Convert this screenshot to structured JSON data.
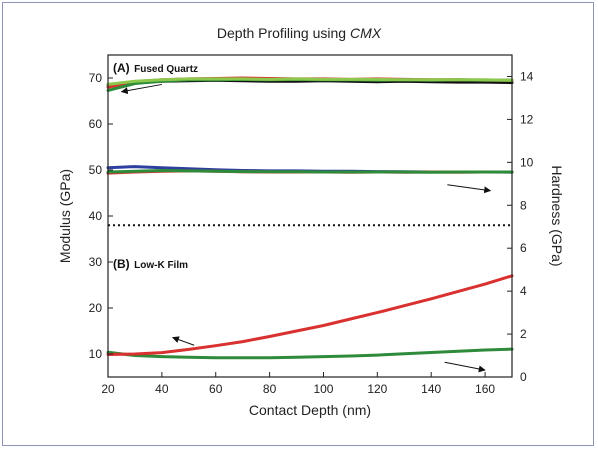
{
  "chart_data": {
    "type": "line",
    "title": "Depth Profiling using",
    "title_italic": "CMX",
    "xlabel": "Contact Depth (nm)",
    "ylabel_left": "Modulus (GPa)",
    "ylabel_right": "Hardness (GPa)",
    "xlim": [
      20,
      170
    ],
    "ylim_left": [
      5,
      75
    ],
    "ylim_right": [
      0,
      15
    ],
    "x_ticks": [
      20,
      40,
      60,
      80,
      100,
      120,
      140,
      160
    ],
    "y_left_ticks": [
      10,
      20,
      30,
      40,
      50,
      60,
      70
    ],
    "y_right_ticks": [
      0,
      2,
      4,
      6,
      8,
      10,
      12,
      14
    ],
    "divider_y_left": 38,
    "panels": [
      {
        "label_prefix": "(A)",
        "label_text": "Fused Quartz"
      },
      {
        "label_prefix": "(B)",
        "label_text": "Low-K Film"
      }
    ],
    "series": [
      {
        "group": "fused-quartz-modulus",
        "axis": "left",
        "color": "#111111",
        "x": [
          20,
          30,
          40,
          50,
          60,
          70,
          80,
          90,
          100,
          110,
          120,
          130,
          140,
          150,
          160,
          170
        ],
        "y": [
          68.5,
          69.0,
          69.3,
          69.4,
          69.5,
          69.4,
          69.3,
          69.3,
          69.4,
          69.3,
          69.2,
          69.3,
          69.2,
          69.1,
          69.1,
          69.0
        ]
      },
      {
        "group": "fused-quartz-modulus",
        "axis": "left",
        "color": "#d93030",
        "x": [
          20,
          30,
          40,
          50,
          60,
          70,
          80,
          90,
          100,
          110,
          120,
          130,
          140,
          150,
          160,
          170
        ],
        "y": [
          68.0,
          69.2,
          69.6,
          69.8,
          69.9,
          70.0,
          69.9,
          69.8,
          69.8,
          69.7,
          69.8,
          69.7,
          69.6,
          69.6,
          69.5,
          69.5
        ]
      },
      {
        "group": "fused-quartz-modulus",
        "axis": "left",
        "color": "#2e8b3a",
        "x": [
          20,
          30,
          40,
          50,
          60,
          70,
          80,
          90,
          100,
          110,
          120,
          130,
          140,
          150,
          160,
          170
        ],
        "y": [
          67.3,
          68.8,
          69.3,
          69.6,
          69.6,
          69.7,
          69.6,
          69.7,
          69.6,
          69.6,
          69.5,
          69.6,
          69.5,
          69.6,
          69.5,
          69.5
        ]
      },
      {
        "group": "fused-quartz-modulus",
        "axis": "left",
        "color": "#8cc84b",
        "x": [
          20,
          30,
          40,
          50,
          60,
          70,
          80,
          90,
          100,
          110,
          120,
          130,
          140,
          150,
          160,
          170
        ],
        "y": [
          68.6,
          69.3,
          69.6,
          69.8,
          69.8,
          69.8,
          69.7,
          69.8,
          69.7,
          69.7,
          69.7,
          69.6,
          69.6,
          69.6,
          69.6,
          69.5
        ]
      },
      {
        "group": "fused-quartz-hardness",
        "axis": "right",
        "color": "#2e3fa0",
        "x": [
          20,
          30,
          40,
          50,
          60,
          70,
          80,
          90,
          100,
          110,
          120,
          130,
          140,
          150,
          160,
          170
        ],
        "y": [
          9.75,
          9.8,
          9.75,
          9.7,
          9.65,
          9.62,
          9.6,
          9.6,
          9.58,
          9.58,
          9.57,
          9.56,
          9.55,
          9.55,
          9.55,
          9.54
        ]
      },
      {
        "group": "fused-quartz-hardness",
        "axis": "right",
        "color": "#d93030",
        "x": [
          20,
          30,
          40,
          50,
          60,
          70,
          80,
          90,
          100,
          110,
          120,
          130,
          140,
          150,
          160,
          170
        ],
        "y": [
          9.5,
          9.55,
          9.58,
          9.6,
          9.58,
          9.56,
          9.55,
          9.55,
          9.55,
          9.54,
          9.55,
          9.54,
          9.55,
          9.54,
          9.55,
          9.55
        ]
      },
      {
        "group": "fused-quartz-hardness",
        "axis": "right",
        "color": "#2e8b3a",
        "x": [
          20,
          30,
          40,
          50,
          60,
          70,
          80,
          90,
          100,
          110,
          120,
          130,
          140,
          150,
          160,
          170
        ],
        "y": [
          9.55,
          9.58,
          9.62,
          9.6,
          9.58,
          9.57,
          9.56,
          9.56,
          9.55,
          9.55,
          9.55,
          9.55,
          9.54,
          9.55,
          9.55,
          9.55
        ]
      },
      {
        "group": "low-k-hardness",
        "axis": "right",
        "color": "#2e8b3a",
        "x": [
          20,
          30,
          40,
          50,
          60,
          70,
          80,
          90,
          100,
          110,
          120,
          130,
          140,
          150,
          160,
          170
        ],
        "y": [
          1.15,
          1.0,
          0.95,
          0.92,
          0.9,
          0.9,
          0.9,
          0.92,
          0.95,
          0.98,
          1.02,
          1.08,
          1.14,
          1.2,
          1.26,
          1.3
        ]
      },
      {
        "group": "low-k-modulus",
        "axis": "left",
        "color": "#d93030",
        "x": [
          20,
          30,
          40,
          50,
          60,
          70,
          80,
          90,
          100,
          110,
          120,
          130,
          140,
          150,
          160,
          170
        ],
        "y": [
          9.9,
          10.0,
          10.3,
          11.0,
          11.8,
          12.7,
          13.8,
          15.0,
          16.2,
          17.6,
          19.0,
          20.5,
          22.0,
          23.6,
          25.2,
          27.0
        ]
      }
    ],
    "annotations": [
      {
        "type": "arrow",
        "from": [
          40,
          68.6
        ],
        "to": [
          25,
          67.0
        ]
      },
      {
        "type": "arrow",
        "from": [
          146,
          46.8
        ],
        "to": [
          162,
          45.5
        ]
      },
      {
        "type": "arrow",
        "from": [
          52,
          11.9
        ],
        "to": [
          44,
          13.6
        ]
      },
      {
        "type": "arrow",
        "from": [
          145,
          8.2
        ],
        "to": [
          160,
          6.5
        ]
      }
    ],
    "legend": "none",
    "grid": false
  }
}
